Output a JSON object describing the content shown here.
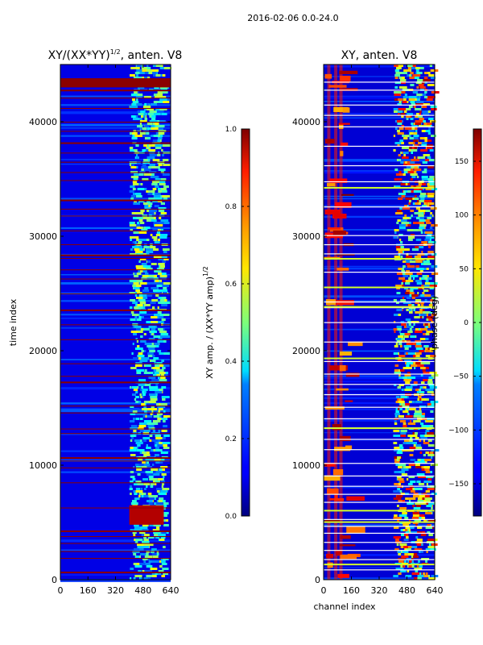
{
  "figure": {
    "suptitle": "2016-02-06 0.0-24.0"
  },
  "chart_data": [
    {
      "type": "heatmap",
      "panel": "left",
      "title_main": "XY/(XX*YY)",
      "title_sup": "1/2",
      "title_tail": ", anten. V8",
      "xlabel": "",
      "ylabel": "time index",
      "xlim": [
        0,
        640
      ],
      "ylim": [
        0,
        45000
      ],
      "xticks": [
        0,
        160,
        320,
        480,
        640
      ],
      "yticks": [
        0,
        10000,
        20000,
        30000,
        40000
      ],
      "colormap": "jet",
      "colorbar": {
        "label_main": "XY amp. / (XX*YY amp)",
        "label_sup": "1/2",
        "range": [
          0.0,
          1.0
        ],
        "ticks": [
          0.0,
          0.2,
          0.4,
          0.6,
          0.8,
          1.0
        ],
        "tick_labels": [
          "0.0",
          "0.2",
          "0.4",
          "0.6",
          "0.8",
          "1.0"
        ]
      },
      "background_value": 0.1,
      "band": {
        "x_range": [
          400,
          620
        ],
        "value_range": [
          0.2,
          0.65
        ]
      },
      "hot_block": {
        "x_range": [
          400,
          600
        ],
        "y_range": [
          4800,
          6500
        ],
        "value": 0.95
      },
      "flagged_rows": [
        700,
        1900,
        2500,
        3200,
        3800,
        4300,
        6300,
        8500,
        9800,
        10400,
        10700,
        12800,
        13200,
        14600,
        15200,
        17300,
        17800,
        18900,
        21000,
        22300,
        23600,
        25000,
        26300,
        27100,
        28100,
        28400,
        29300,
        30500,
        31800,
        32400,
        33200,
        34900,
        35600,
        36500,
        37300,
        38200,
        39200,
        40000,
        41200,
        42100,
        42800,
        43200
      ]
    },
    {
      "type": "heatmap",
      "panel": "right",
      "title_main": "XY, anten. V8",
      "xlabel": "channel index",
      "ylabel": "",
      "xlim": [
        0,
        640
      ],
      "ylim": [
        0,
        45000
      ],
      "xticks": [
        0,
        160,
        320,
        480,
        640
      ],
      "yticks": [
        0,
        10000,
        20000,
        30000,
        40000
      ],
      "colormap": "jet",
      "colorbar": {
        "label_main": "phase (deg)",
        "range": [
          -180,
          180
        ],
        "ticks": [
          -150,
          -100,
          -50,
          0,
          50,
          100,
          150
        ],
        "tick_labels": [
          "−150",
          "−100",
          "−50",
          "0",
          "50",
          "100",
          "150"
        ]
      },
      "background_value": -150,
      "hot_columns": [
        30,
        70,
        100
      ],
      "band": {
        "x_range": [
          400,
          640
        ],
        "value_range": [
          -100,
          170
        ]
      },
      "white_rows": [
        900,
        1800,
        2600,
        3300,
        4100,
        4700,
        5300,
        6800,
        7500,
        8200,
        9100,
        10200,
        11400,
        12300,
        13300,
        14100,
        15100,
        16200,
        17100,
        18000,
        19100,
        20800,
        22500,
        23800,
        24300,
        26900,
        28500,
        29300,
        30100,
        32600,
        34800,
        36200,
        37900,
        39600,
        40600,
        41500,
        42800,
        43500
      ],
      "lime_rows": [
        1400,
        5100,
        6100,
        13300,
        19400,
        23900,
        25600,
        28100,
        34300
      ]
    }
  ]
}
